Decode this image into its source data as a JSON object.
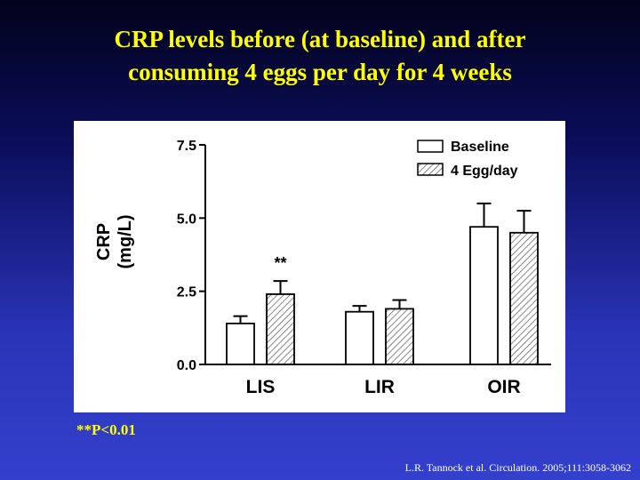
{
  "slide": {
    "title_line1": "CRP levels before (at baseline) and after",
    "title_line2": "consuming 4 eggs per day for 4 weeks",
    "footnote": "**P<0.01",
    "citation": "L.R. Tannock et al. Circulation. 2005;111:3058-3062"
  },
  "chart_data": {
    "type": "bar",
    "ylabel_line1": "CRP",
    "ylabel_line2": "(mg/L)",
    "ylim": [
      0,
      7.5
    ],
    "yticks": [
      "0.0",
      "2.5",
      "5.0",
      "7.5"
    ],
    "ytick_values": [
      0,
      2.5,
      5.0,
      7.5
    ],
    "categories": [
      "LIS",
      "LIR",
      "OIR"
    ],
    "series": [
      {
        "name": "Baseline",
        "values": [
          1.4,
          1.8,
          4.7
        ],
        "errors": [
          0.25,
          0.2,
          0.8
        ],
        "fill": "open"
      },
      {
        "name": "4 Egg/day",
        "values": [
          2.4,
          1.9,
          4.5
        ],
        "errors": [
          0.45,
          0.3,
          0.75
        ],
        "fill": "hatched"
      }
    ],
    "annotations": [
      {
        "category": "LIS",
        "series": "4 Egg/day",
        "text": "**"
      }
    ],
    "legend_position": "top-right",
    "grid": false
  }
}
